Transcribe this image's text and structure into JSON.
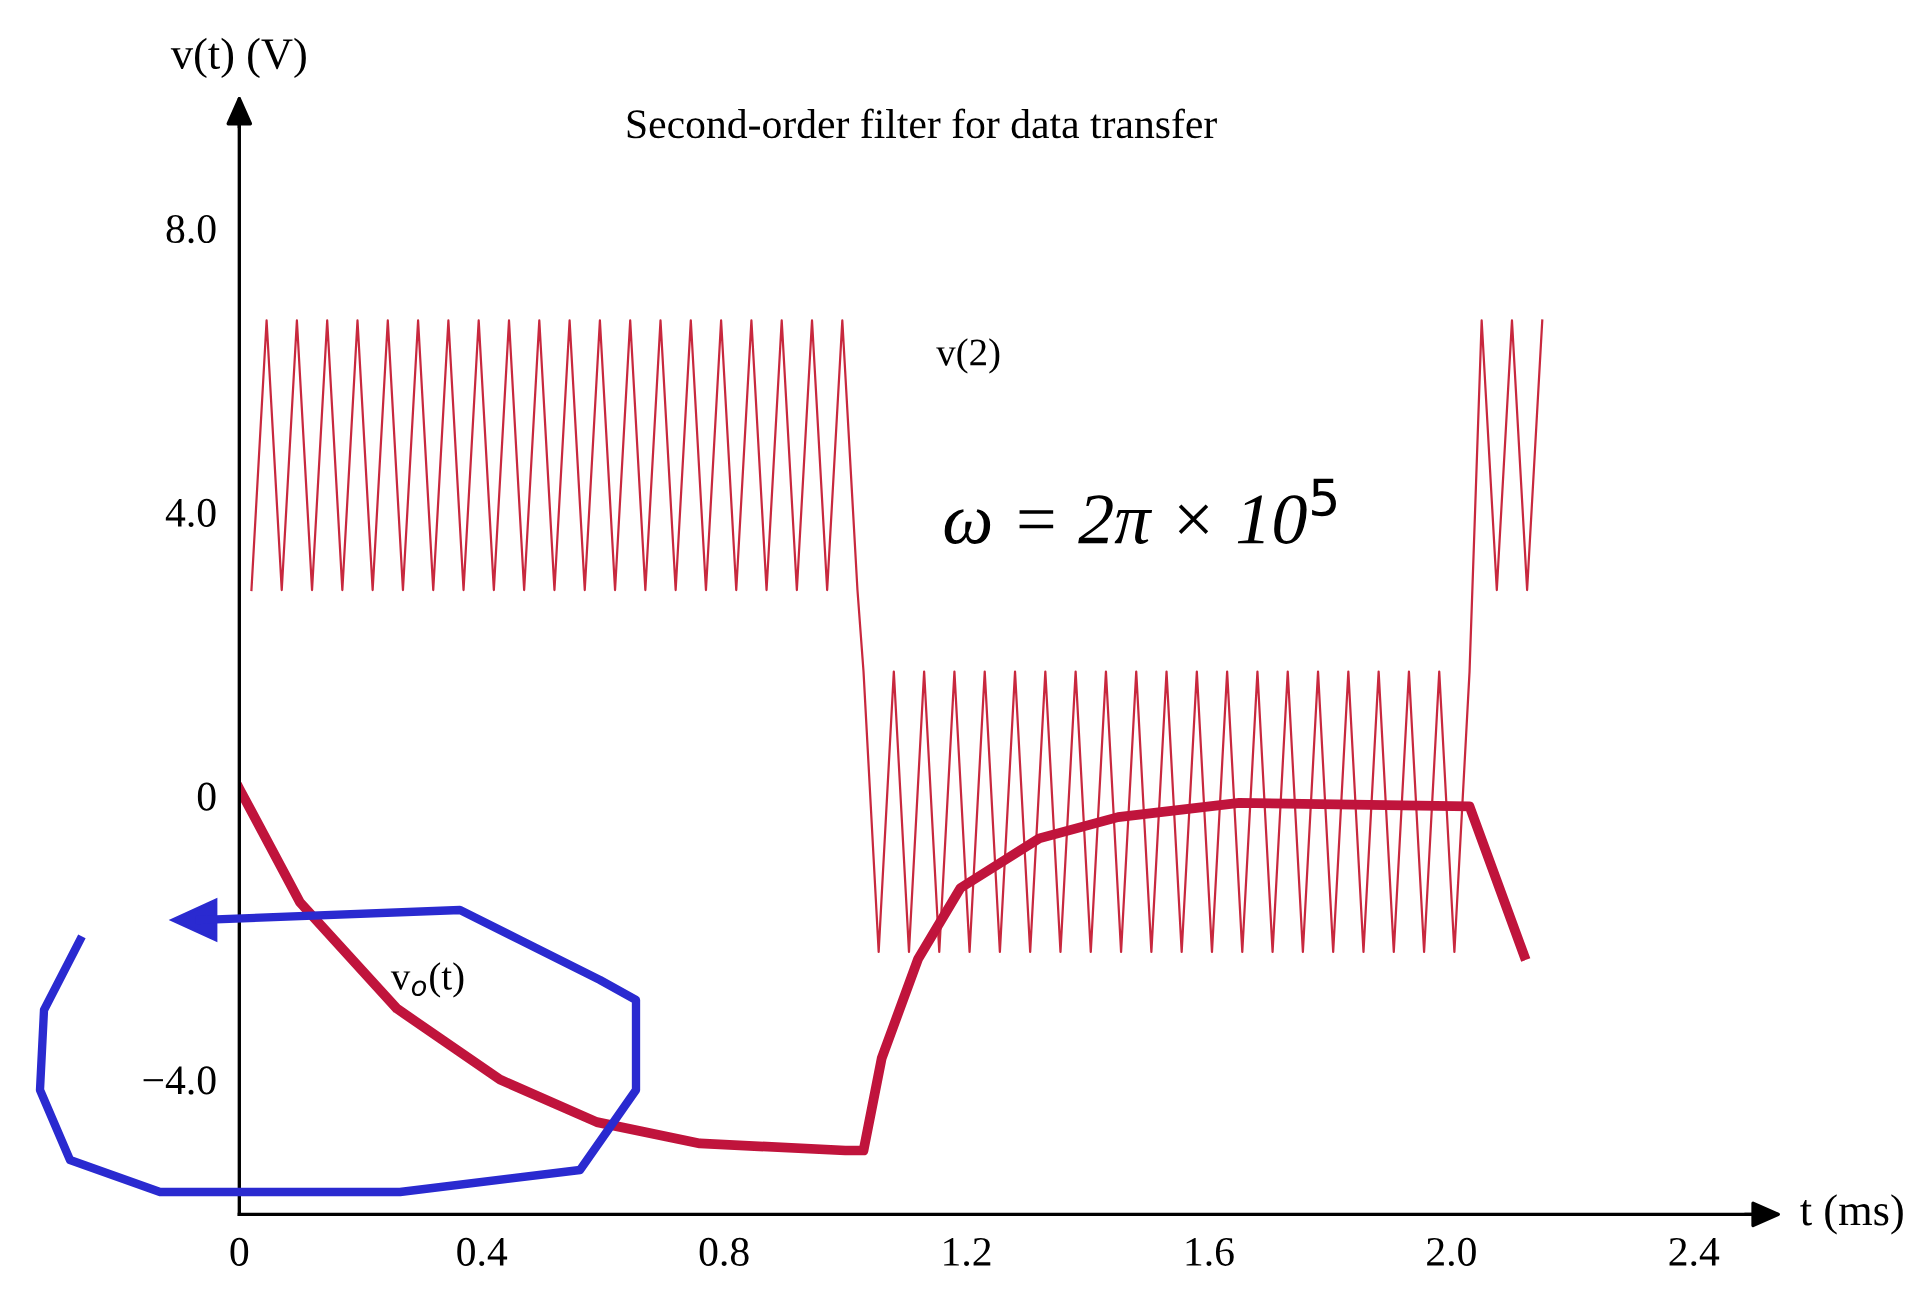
{
  "chart_data": {
    "type": "line",
    "title": "Second-order filter for data transfer",
    "xlabel": "t (ms)",
    "ylabel": "v(t) (V)",
    "annotations": [
      "ω = 2π × 10$^{5}$"
    ],
    "xlim": [
      0,
      2.5
    ],
    "ylim": [
      -5.9,
      9.5
    ],
    "xticks": [
      0,
      0.4,
      0.8,
      1.2,
      1.6,
      {
        "value": 2.0,
        "label": "2.0"
      },
      2.4
    ],
    "yticks": [
      {
        "value": -4.0,
        "label": "−4.0"
      },
      0,
      {
        "value": 4.0,
        "label": "4.0"
      },
      {
        "value": 8.0,
        "label": "8.0"
      }
    ],
    "grid": false,
    "legend": false,
    "line_style": "solid",
    "marker": "none",
    "series": [
      {
        "name": "v(2)",
        "color": "#c8283e",
        "x": [
          0.02,
          0.045,
          0.07,
          0.095,
          0.12,
          0.145,
          0.17,
          0.195,
          0.22,
          0.245,
          0.27,
          0.295,
          0.32,
          0.345,
          0.37,
          0.395,
          0.42,
          0.445,
          0.47,
          0.495,
          0.52,
          0.545,
          0.57,
          0.595,
          0.62,
          0.645,
          0.67,
          0.695,
          0.72,
          0.745,
          0.77,
          0.795,
          0.82,
          0.845,
          0.87,
          0.895,
          0.92,
          0.945,
          0.97,
          0.995,
          1.02,
          1.03,
          1.055,
          1.08,
          1.105,
          1.13,
          1.155,
          1.18,
          1.205,
          1.23,
          1.255,
          1.28,
          1.305,
          1.33,
          1.355,
          1.38,
          1.405,
          1.43,
          1.455,
          1.48,
          1.505,
          1.53,
          1.555,
          1.58,
          1.605,
          1.63,
          1.655,
          1.68,
          1.705,
          1.73,
          1.755,
          1.78,
          1.805,
          1.83,
          1.855,
          1.88,
          1.905,
          1.93,
          1.955,
          1.98,
          2.005,
          2.03,
          2.05,
          2.075,
          2.1,
          2.125,
          2.15
        ],
        "values": [
          2.9,
          6.7,
          2.9,
          6.7,
          2.9,
          6.7,
          2.9,
          6.7,
          2.9,
          6.7,
          2.9,
          6.7,
          2.9,
          6.7,
          2.9,
          6.7,
          2.9,
          6.7,
          2.9,
          6.7,
          2.9,
          6.7,
          2.9,
          6.7,
          2.9,
          6.7,
          2.9,
          6.7,
          2.9,
          6.7,
          2.9,
          6.7,
          2.9,
          6.7,
          2.9,
          6.7,
          2.9,
          6.7,
          2.9,
          6.7,
          2.9,
          1.75,
          -2.2,
          1.75,
          -2.2,
          1.75,
          -2.2,
          1.75,
          -2.2,
          1.75,
          -2.2,
          1.75,
          -2.2,
          1.75,
          -2.2,
          1.75,
          -2.2,
          1.75,
          -2.2,
          1.75,
          -2.2,
          1.75,
          -2.2,
          1.75,
          -2.2,
          1.75,
          -2.2,
          1.75,
          -2.2,
          1.75,
          -2.2,
          1.75,
          -2.2,
          1.75,
          -2.2,
          1.75,
          -2.2,
          1.75,
          -2.2,
          1.75,
          -2.2,
          1.75,
          6.7,
          2.9,
          6.7,
          2.9,
          6.7
        ]
      },
      {
        "name": "v$_{o}$(t)",
        "color": "#c0143c",
        "x": [
          0,
          0.1,
          0.26,
          0.43,
          0.59,
          0.76,
          1.0,
          1.03,
          1.06,
          1.12,
          1.19,
          1.32,
          1.45,
          1.65,
          2.03,
          2.12
        ],
        "values": [
          0.1,
          -1.5,
          -3.0,
          -4.0,
          -4.6,
          -4.9,
          -5.0,
          -5.0,
          -3.7,
          -2.3,
          -1.3,
          -0.6,
          -0.3,
          -0.1,
          -0.15,
          -2.25
        ]
      }
    ]
  }
}
